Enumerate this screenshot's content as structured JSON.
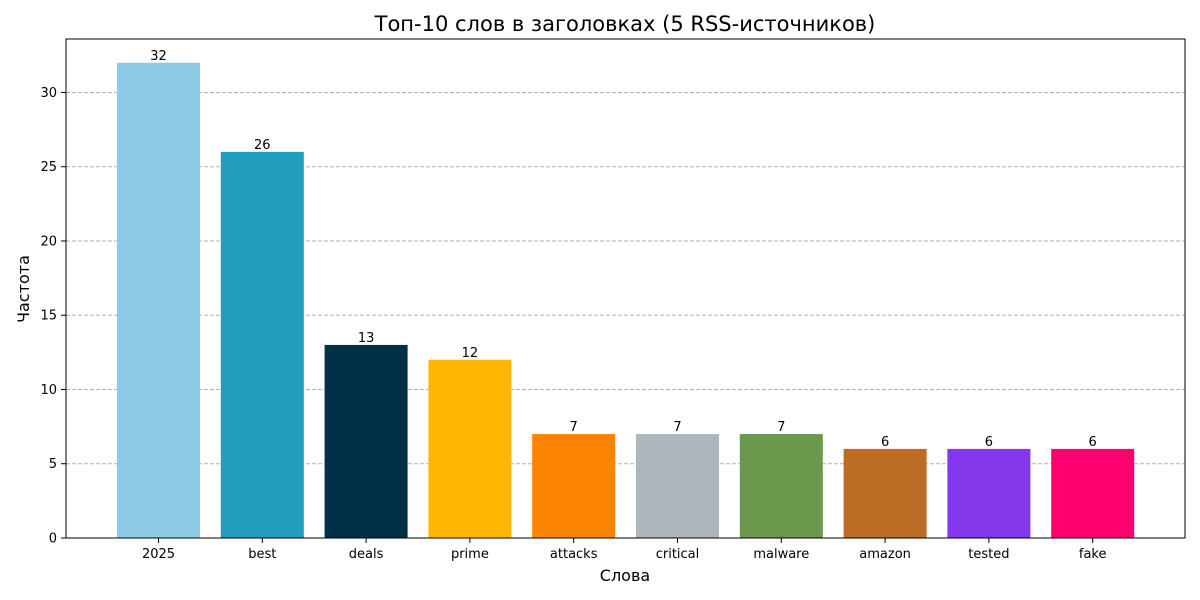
{
  "chart_data": {
    "type": "bar",
    "title": "Топ-10 слов в заголовках (5 RSS-источников)",
    "xlabel": "Слова",
    "ylabel": "Частота",
    "categories": [
      "2025",
      "best",
      "deals",
      "prime",
      "attacks",
      "critical",
      "malware",
      "amazon",
      "tested",
      "fake"
    ],
    "values": [
      32,
      26,
      13,
      12,
      7,
      7,
      7,
      6,
      6,
      6
    ],
    "colors": [
      "#8ecae6",
      "#219ebc",
      "#023047",
      "#ffb703",
      "#fb8500",
      "#adb5bd",
      "#6a994e",
      "#bc6c25",
      "#8338ec",
      "#ff006e"
    ],
    "ylim": [
      0,
      33.6
    ],
    "yticks": [
      0,
      5,
      10,
      15,
      20,
      25,
      30
    ],
    "grid": "y-dashed",
    "data_labels": true
  }
}
